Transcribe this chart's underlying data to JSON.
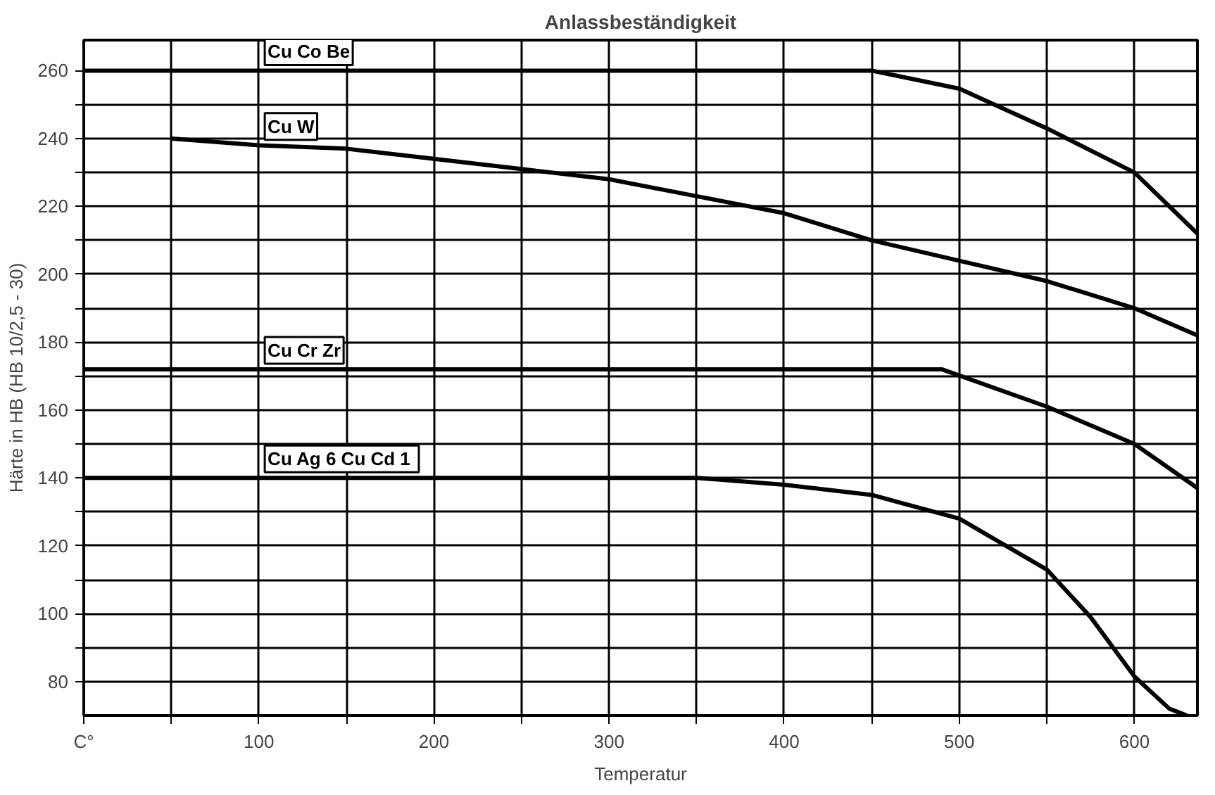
{
  "chart_data": {
    "type": "line",
    "title": "Anlassbeständigkeit",
    "xlabel": "Temperatur",
    "ylabel": "Härte in HB (HB 10/2,5 - 30)",
    "xlim": [
      0,
      636
    ],
    "ylim": [
      70,
      269
    ],
    "xticks": [
      {
        "value": 0,
        "label": "C°"
      },
      {
        "value": 50,
        "label": null
      },
      100,
      {
        "value": 150,
        "label": null
      },
      200,
      {
        "value": 250,
        "label": null
      },
      300,
      {
        "value": 350,
        "label": null
      },
      400,
      {
        "value": 450,
        "label": null
      },
      500,
      {
        "value": 550,
        "label": null
      },
      600
    ],
    "yticks": [
      80,
      {
        "value": 90,
        "label": null
      },
      100,
      {
        "value": 110,
        "label": null
      },
      120,
      {
        "value": 130,
        "label": null
      },
      140,
      {
        "value": 150,
        "label": null
      },
      160,
      {
        "value": 170,
        "label": null
      },
      180,
      {
        "value": 190,
        "label": null
      },
      200,
      {
        "value": 210,
        "label": null
      },
      220,
      {
        "value": 230,
        "label": null
      },
      240,
      {
        "value": 250,
        "label": null
      },
      260
    ],
    "grid": true,
    "line_style": "solid",
    "marker": "none",
    "series": [
      {
        "name": "Cu Co Be",
        "color": "#000000",
        "x": [
          0,
          100,
          200,
          300,
          400,
          450,
          500,
          550,
          600,
          636
        ],
        "values": [
          260,
          260,
          260,
          260,
          260,
          260,
          254.7,
          243,
          230,
          212
        ]
      },
      {
        "name": "Cu W",
        "color": "#000000",
        "x": [
          50,
          100,
          150,
          200,
          250,
          300,
          350,
          400,
          450,
          500,
          550,
          600,
          636
        ],
        "values": [
          240,
          238,
          237,
          234,
          231,
          228,
          223,
          218,
          210,
          204,
          198,
          190,
          182
        ]
      },
      {
        "name": "Cu Cr Zr",
        "color": "#000000",
        "x": [
          0,
          100,
          200,
          300,
          400,
          490,
          550,
          600,
          636
        ],
        "values": [
          172,
          172,
          172,
          172,
          172,
          172,
          161,
          150,
          137
        ]
      },
      {
        "name": "Cu Ag 6  Cu Cd 1",
        "color": "#000000",
        "x": [
          0,
          100,
          200,
          300,
          350,
          400,
          450,
          500,
          550,
          575,
          600,
          620,
          630
        ],
        "values": [
          140,
          140,
          140,
          140,
          140,
          138,
          135,
          128,
          113,
          99,
          81.5,
          72,
          70
        ]
      }
    ]
  }
}
